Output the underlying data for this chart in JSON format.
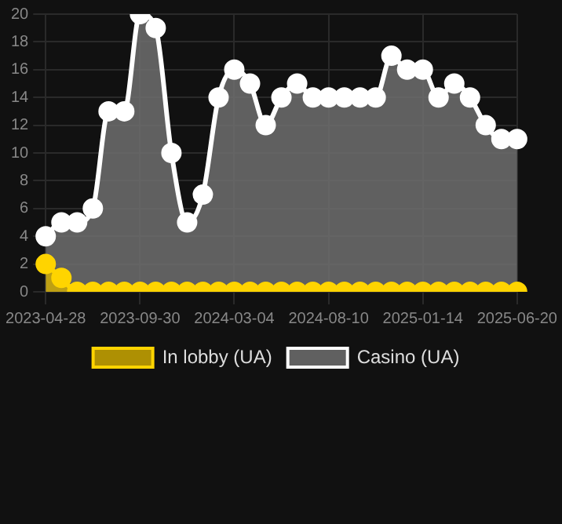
{
  "chart_data": {
    "type": "area",
    "categories": [
      "2023-04-28",
      null,
      null,
      null,
      null,
      null,
      "2023-09-30",
      null,
      null,
      null,
      null,
      null,
      "2024-03-04",
      null,
      null,
      null,
      null,
      null,
      "2024-08-10",
      null,
      null,
      null,
      null,
      null,
      "2025-01-14",
      null,
      null,
      null,
      null,
      null,
      "2025-06-20"
    ],
    "series": [
      {
        "name": "In lobby (UA)",
        "color": "#ffd400",
        "values": [
          2,
          1,
          0,
          0,
          0,
          0,
          0,
          0,
          0,
          0,
          0,
          0,
          0,
          0,
          0,
          0,
          0,
          0,
          0,
          0,
          0,
          0,
          0,
          0,
          0,
          0,
          0,
          0,
          0,
          0,
          0
        ]
      },
      {
        "name": "Casino (UA)",
        "color": "#ffffff",
        "values": [
          4,
          5,
          5,
          6,
          13,
          13,
          20,
          19,
          10,
          5,
          7,
          14,
          16,
          15,
          12,
          14,
          15,
          14,
          14,
          14,
          14,
          14,
          17,
          16,
          16,
          14,
          15,
          14,
          12,
          11,
          11
        ]
      }
    ],
    "ylim": [
      0,
      20
    ],
    "yticks": [
      0,
      2,
      4,
      6,
      8,
      10,
      12,
      14,
      16,
      18,
      20
    ],
    "grid": true,
    "legend": "bottom",
    "marker": "circle",
    "line_style": "solid"
  }
}
